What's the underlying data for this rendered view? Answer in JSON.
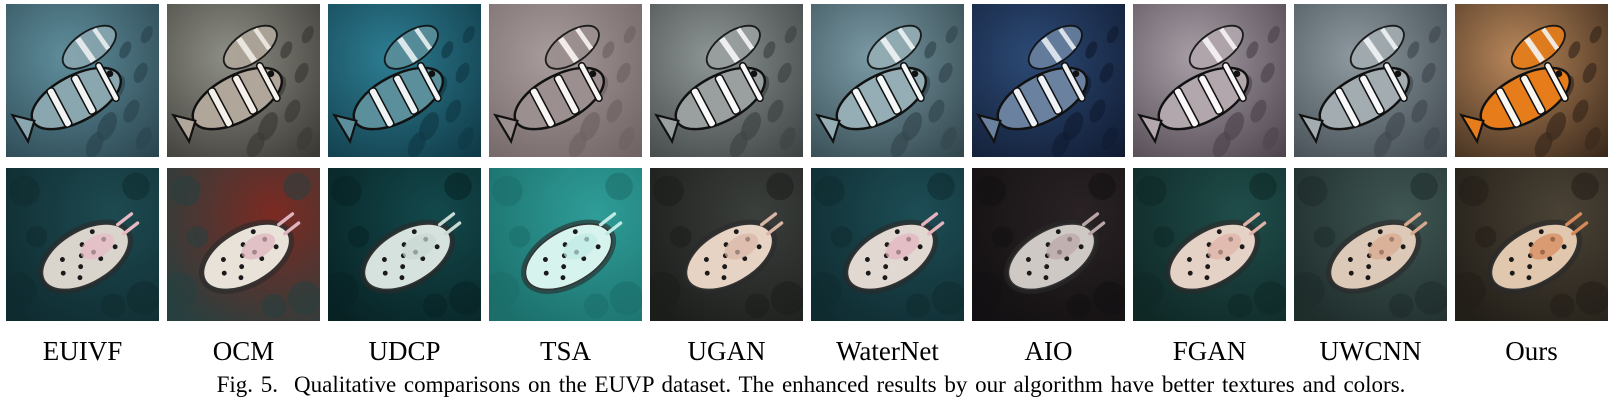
{
  "methods": [
    {
      "label": "EUIVF",
      "fish": {
        "bg": "#5f8e9c",
        "bg2": "#2b4650",
        "body": "#8aa7b0",
        "stripe": "#f2f4f4"
      },
      "slug": {
        "bg": "#1d4a50",
        "bg2": "#0e2b30",
        "body": "#d9d4cc",
        "spot": "#e7b9c4"
      }
    },
    {
      "label": "OCM",
      "fish": {
        "bg": "#8e8f87",
        "bg2": "#3c3a35",
        "body": "#b0a79a",
        "stripe": "#f5f1ea"
      },
      "slug": {
        "bg": "#7c2a22",
        "bg2": "#27403f",
        "body": "#e8e2d8",
        "spot": "#e0b4bf"
      }
    },
    {
      "label": "UDCP",
      "fish": {
        "bg": "#2d7d92",
        "bg2": "#103a47",
        "body": "#5b8f9b",
        "stripe": "#eef4f5"
      },
      "slug": {
        "bg": "#13494c",
        "bg2": "#082224",
        "body": "#d6e2dd",
        "spot": "#c9d9d3"
      }
    },
    {
      "label": "TSA",
      "fish": {
        "bg": "#a89d9c",
        "bg2": "#6f6363",
        "body": "#9b8f8f",
        "stripe": "#faf5f5"
      },
      "slug": {
        "bg": "#2f9d98",
        "bg2": "#1b6e6a",
        "body": "#d6f3ee",
        "spot": "#bfeae4"
      }
    },
    {
      "label": "UGAN",
      "fish": {
        "bg": "#8e9595",
        "bg2": "#3f4444",
        "body": "#9aa0a0",
        "stripe": "#fafafa"
      },
      "slug": {
        "bg": "#3b3f3c",
        "bg2": "#1b1d1b",
        "body": "#e6d3c4",
        "spot": "#d9b5a6"
      }
    },
    {
      "label": "WaterNet",
      "fish": {
        "bg": "#7a9aa5",
        "bg2": "#33474e",
        "body": "#95aeb5",
        "stripe": "#f5f8f9"
      },
      "slug": {
        "bg": "#1d4d55",
        "bg2": "#0f2b30",
        "body": "#e2d8d2",
        "spot": "#e4b3bd"
      }
    },
    {
      "label": "AIO",
      "fish": {
        "bg": "#2c4a76",
        "bg2": "#111c33",
        "body": "#6a82a0",
        "stripe": "#eef2f7"
      },
      "slug": {
        "bg": "#2a2224",
        "bg2": "#121012",
        "body": "#cfc9c6",
        "spot": "#b9a7a7"
      }
    },
    {
      "label": "FGAN",
      "fish": {
        "bg": "#a79ea6",
        "bg2": "#4f4650",
        "body": "#b2a7ad",
        "stripe": "#fbf7f9"
      },
      "slug": {
        "bg": "#1f4d4a",
        "bg2": "#0f2826",
        "body": "#e5d2c7",
        "spot": "#e0b1a6"
      }
    },
    {
      "label": "UWCNN",
      "fish": {
        "bg": "#8e9aa0",
        "bg2": "#404a50",
        "body": "#a2acb1",
        "stripe": "#f6f8f9"
      },
      "slug": {
        "bg": "#3f5653",
        "bg2": "#1e2c2a",
        "body": "#dcc9b8",
        "spot": "#d8a88d"
      }
    },
    {
      "label": "Ours",
      "fish": {
        "bg": "#b9875a",
        "bg2": "#3b2a1c",
        "body": "#e67d1a",
        "stripe": "#fbf7f1"
      },
      "slug": {
        "bg": "#4a4235",
        "bg2": "#221e18",
        "body": "#e0c7ae",
        "spot": "#d7895a"
      }
    }
  ],
  "caption": {
    "fig": "Fig. 5.",
    "text": "Qualitative comparisons on the EUVP dataset. The enhanced results by our algorithm have better textures and colors."
  }
}
